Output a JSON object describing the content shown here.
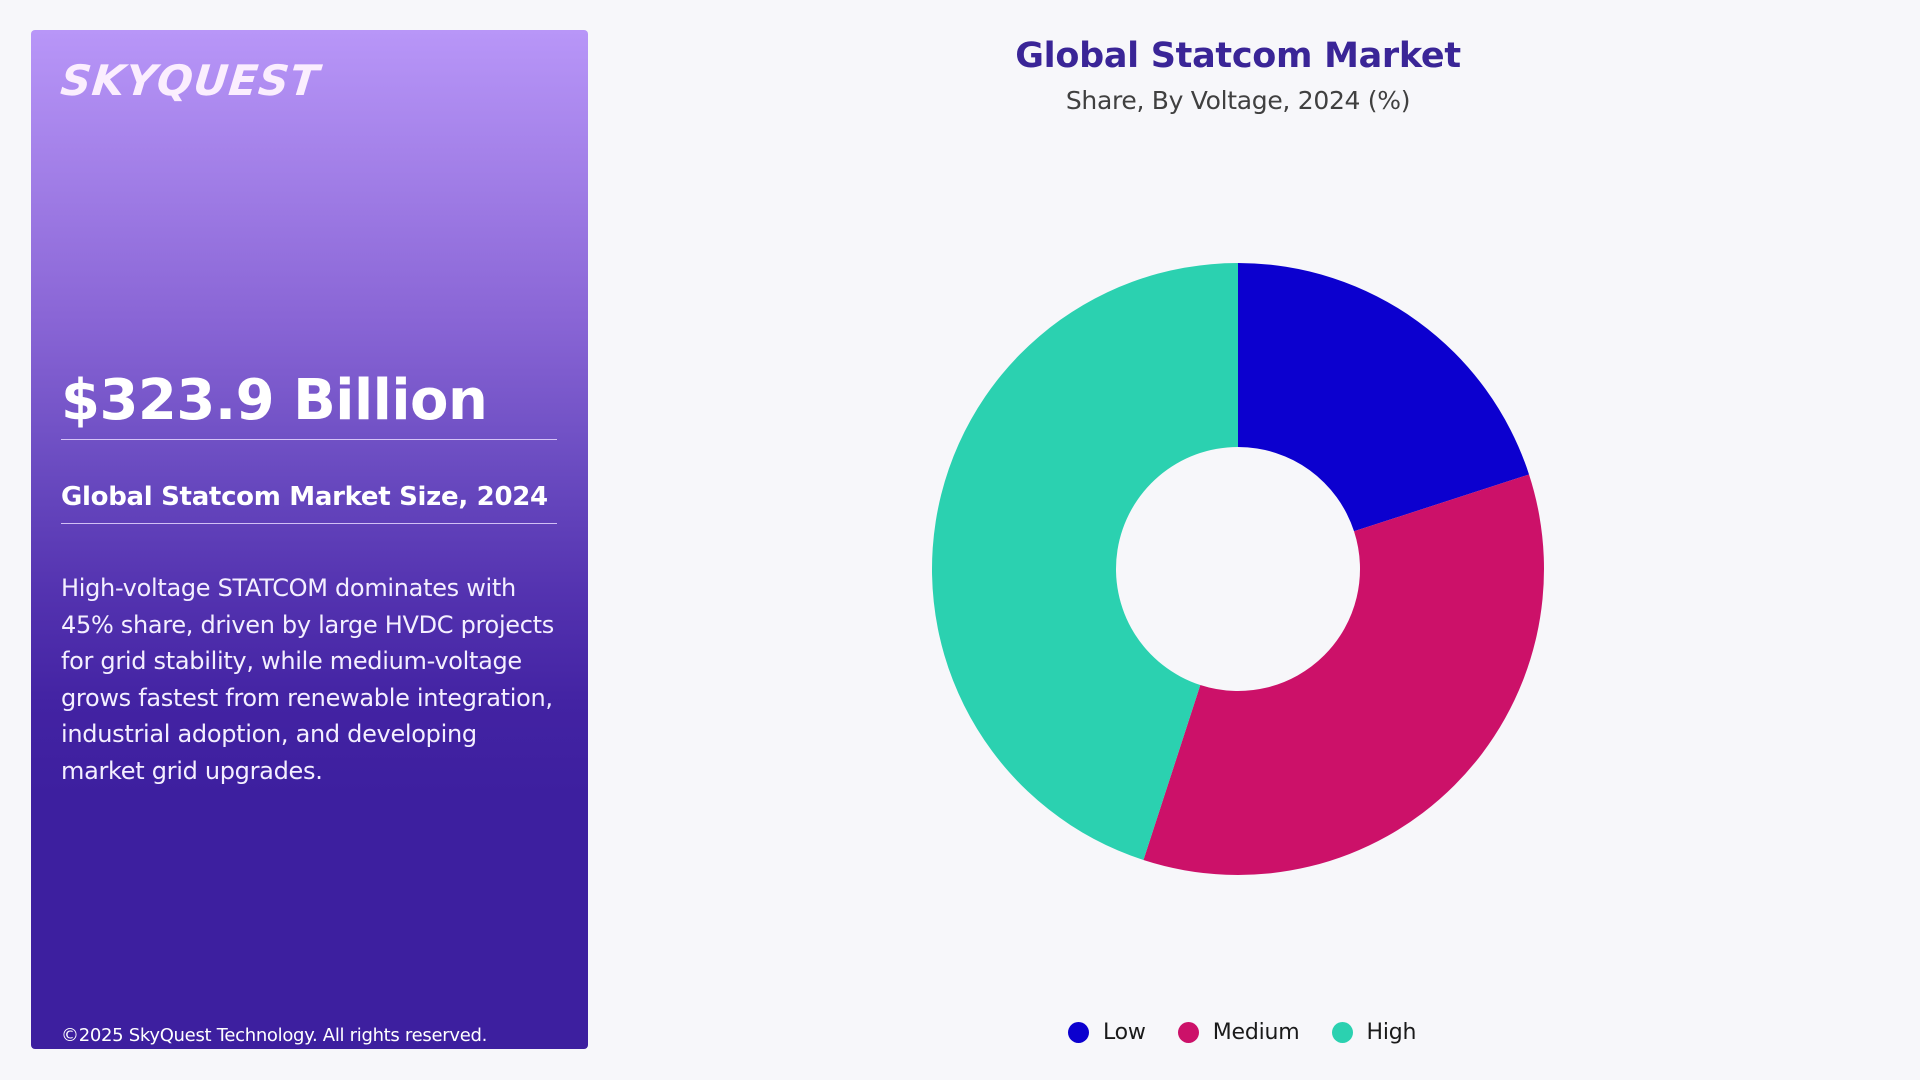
{
  "panel": {
    "logo": "SKYQUEST",
    "market_value": "$323.9 Billion",
    "size_label": "Global Statcom Market Size, 2024",
    "description": "High-voltage STATCOM dominates with 45% share, driven by large HVDC projects for grid stability, while medium-voltage grows fastest from renewable integration, industrial adoption, and developing market grid upgrades.",
    "copyright": "©2025 SkyQuest Technology. All rights reserved."
  },
  "chart": {
    "title": "Global Statcom Market",
    "subtitle": "Share, By Voltage, 2024 (%)"
  },
  "legend": [
    {
      "label": "Low",
      "color": "#0c00cf"
    },
    {
      "label": "Medium",
      "color": "#cc1169"
    },
    {
      "label": "High",
      "color": "#2bd1b0"
    }
  ],
  "colors": {
    "title": "#3a2597",
    "panel_top": "#b896f8",
    "panel_bottom": "#3d1f9f",
    "background": "#f7f7fa"
  },
  "chart_data": {
    "type": "pie",
    "variant": "donut",
    "title": "Global Statcom Market",
    "subtitle": "Share, By Voltage, 2024 (%)",
    "categories": [
      "Low",
      "Medium",
      "High"
    ],
    "values": [
      20,
      35,
      45
    ],
    "colors": [
      "#0c00cf",
      "#cc1169",
      "#2bd1b0"
    ],
    "unit": "%",
    "start_angle_deg": 0,
    "direction": "clockwise",
    "legend_position": "bottom",
    "data_labels": false
  }
}
